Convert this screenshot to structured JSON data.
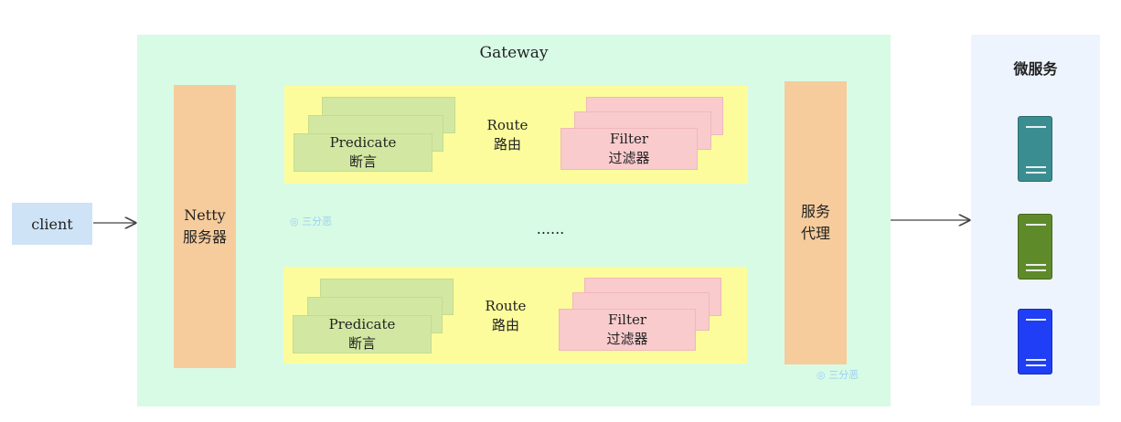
{
  "client": {
    "label": "client"
  },
  "gateway": {
    "title": "Gateway",
    "netty": {
      "line1": "Netty",
      "line2": "服务器"
    },
    "routes": [
      {
        "predicate": "Predicate",
        "predicate_cn": "断言",
        "route": "Route",
        "route_cn": "路由",
        "filter": "Filter",
        "filter_cn": "过滤器"
      },
      {
        "predicate": "Predicate",
        "predicate_cn": "断言",
        "route": "Route",
        "route_cn": "路由",
        "filter": "Filter",
        "filter_cn": "过滤器"
      }
    ],
    "ellipsis": "......",
    "proxy": {
      "line1": "服务",
      "line2": "代理"
    }
  },
  "microservices": {
    "title": "微服务",
    "servers": [
      {
        "icon": "server-icon",
        "color": "#3a8e91"
      },
      {
        "icon": "server-icon",
        "color": "#5f8a2a"
      },
      {
        "icon": "server-icon",
        "color": "#1f3ef5"
      }
    ]
  },
  "watermark": {
    "text": "三分恶"
  }
}
